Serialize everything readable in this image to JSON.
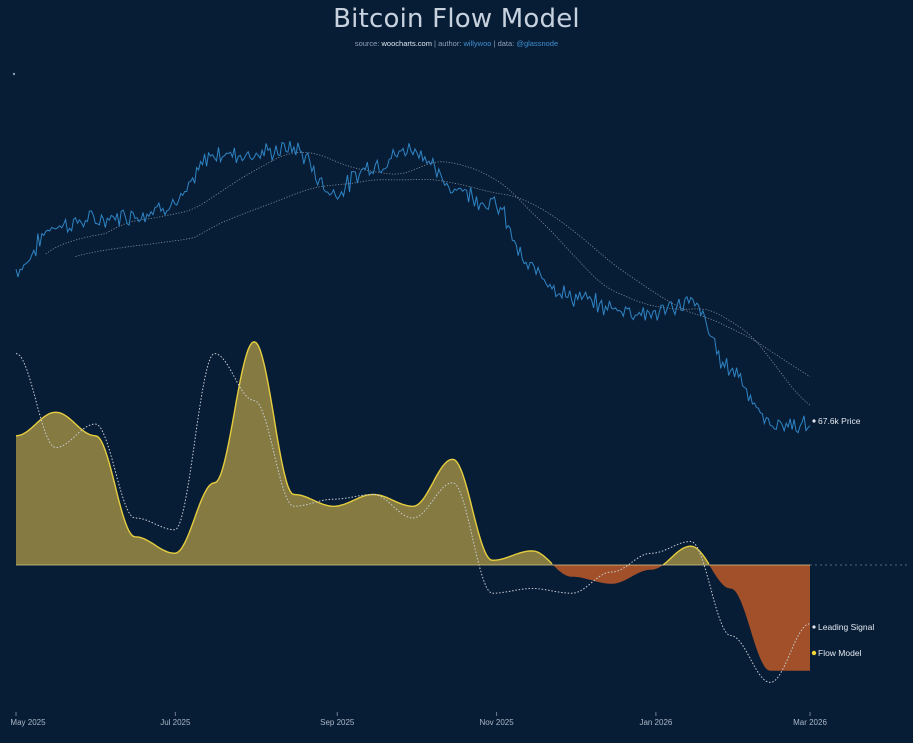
{
  "title": "Bitcoin Flow Model",
  "subtitle": {
    "source_prefix": "source: ",
    "source": "woocharts.com",
    "author_prefix": " | author: ",
    "author": "willywoo",
    "data_prefix": " | data: ",
    "data": "@glassnode"
  },
  "colors": {
    "background": "#071d36",
    "price": "#2f84c4",
    "flow_positive_fill": "#857a41",
    "flow_positive_line": "#e6cd3f",
    "flow_negative_fill": "#a2502a",
    "leading_signal": "#c9ced6",
    "ma": "#aab3bf"
  },
  "chart_data": {
    "type": "line",
    "x_ticks": [
      "May 2025",
      "Jul 2025",
      "Sep 2025",
      "Nov 2025",
      "Jan 2026",
      "Mar 2026"
    ],
    "x": [
      "2025-05-01",
      "2025-05-15",
      "2025-06-01",
      "2025-06-15",
      "2025-07-01",
      "2025-07-15",
      "2025-08-01",
      "2025-08-15",
      "2025-09-01",
      "2025-09-15",
      "2025-10-01",
      "2025-10-15",
      "2025-11-01",
      "2025-11-15",
      "2025-12-01",
      "2025-12-15",
      "2026-01-01",
      "2026-01-15",
      "2026-02-01",
      "2026-02-15",
      "2026-03-01"
    ],
    "series": [
      {
        "name": "Price",
        "values": [
          96,
          104,
          105,
          106,
          108,
          117,
          117,
          118,
          110,
          115,
          118,
          111,
          108,
          96,
          91,
          89,
          88,
          90,
          78,
          68,
          67.6
        ]
      },
      {
        "name": "Flow Model",
        "values": [
          0.55,
          0.65,
          0.55,
          0.12,
          0.05,
          0.35,
          0.95,
          0.3,
          0.25,
          0.3,
          0.25,
          0.45,
          0.02,
          0.06,
          -0.05,
          -0.08,
          -0.02,
          0.08,
          -0.1,
          -0.45,
          -0.45
        ]
      },
      {
        "name": "Leading Signal",
        "values": [
          0.9,
          0.5,
          0.6,
          0.2,
          0.15,
          0.9,
          0.7,
          0.25,
          0.28,
          0.3,
          0.2,
          0.35,
          -0.12,
          -0.1,
          -0.12,
          -0.03,
          0.05,
          0.1,
          -0.3,
          -0.5,
          -0.25
        ]
      }
    ],
    "price_label": "67.6k Price",
    "legend": [
      "Leading Signal",
      "Flow Model"
    ],
    "legend_placement": "right, at series end",
    "grid": false,
    "zero_line": true
  }
}
